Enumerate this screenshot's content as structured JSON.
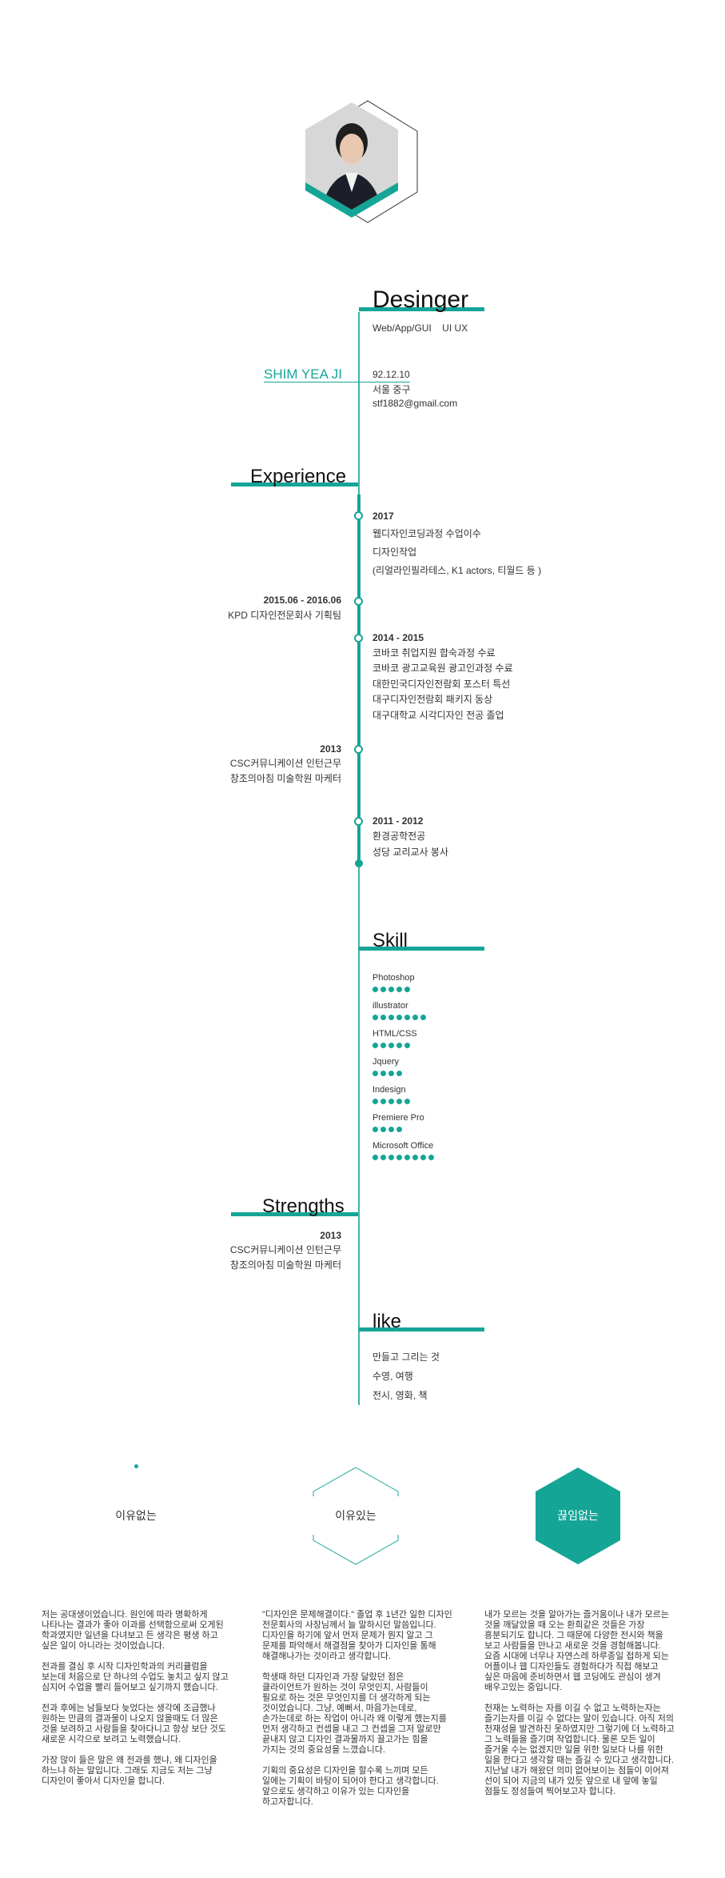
{
  "profile": {
    "title": "Desinger",
    "roles": "Web/App/GUI    UI UX",
    "name": "SHIM YEA JI",
    "birth": "92.12.10",
    "location": "서울 중구",
    "email": "stf1882@gmail.com"
  },
  "experience": {
    "title": "Experience",
    "right_entries": [
      {
        "year": "2017",
        "lines": [
          "웹디자인코딩과정 수업이수",
          "디자인작업",
          "(리얼라인필라테스, K1 actors, 티월드 등 )"
        ]
      },
      {
        "year": "2014 - 2015",
        "lines": [
          "코바코 취업지원 합숙과정 수료",
          "코바코 광고교육원 광고인과정 수료",
          "대한민국디자인전람회 포스터 특선",
          "대구디자인전람회 패키지 동상",
          "대구대학교 시각디자인 전공 졸업"
        ]
      },
      {
        "year": "2011 - 2012",
        "lines": [
          "환경공학전공",
          "성당 교리교사 봉사"
        ]
      }
    ],
    "left_entries": [
      {
        "year": "2015.06 - 2016.06",
        "lines": [
          "KPD 디자인전문회사 기획팀"
        ]
      },
      {
        "year": "2013",
        "lines": [
          "CSC커뮤니케이션 인턴근무",
          "창조의아침 미술학원 마케터"
        ]
      }
    ]
  },
  "skill": {
    "title": "Skill",
    "items": [
      {
        "label": "Photoshop",
        "level": 5
      },
      {
        "label": "illustrator",
        "level": 7
      },
      {
        "label": "HTML/CSS",
        "level": 5
      },
      {
        "label": "Jquery",
        "level": 4
      },
      {
        "label": "Indesign",
        "level": 5
      },
      {
        "label": "Premiere Pro",
        "level": 4
      },
      {
        "label": "Microsoft Office",
        "level": 8
      }
    ]
  },
  "strengths": {
    "title": "Strengths",
    "year": "2013",
    "lines": [
      "CSC커뮤니케이션 인턴근무",
      "창조의아침 미술학원 마케터"
    ]
  },
  "like": {
    "title": "like",
    "lines": [
      "만들고 그리는 것",
      "수영, 여행",
      "전시, 영화, 책"
    ]
  },
  "columns": {
    "c1_label": "이유없는",
    "c2_label": "이유있는",
    "c3_label": "끊임없는",
    "c1_text": "저는 공대생이었습니다. 원인에 따라 명확하게\n나타나는 결과가 좋아 이과를 선택함으로써 오게된\n학과였지만 일년을 다녀보고 든 생각은 평생 하고\n싶은 일이 아니라는 것이었습니다.\n\n전과를 결심 후 시작 디자인학과의 커리큘럼을\n보는데 처음으로 단 하나의 수업도 놓치고 싶지 않고\n심지어 수업을 빨리 들어보고 싶기까지 했습니다.\n\n전과 후에는 남들보다 늦었다는 생각에 조급했나\n원하는 만큼의 결과물이 나오지 않을때도 더 많은\n것을 보려하고 사람들을 찾아다니고 항상 보단 것도\n새로운 시각으로 보려고 노력했습니다.\n\n가장 많이 들은 말은 왜 전과를 했냐, 왜  디자인을\n하느냐 하는 말입니다. 그래도 지금도 저는 그냥\n디자인이 좋아서 디자인을 합니다.",
    "c2_text": "\"디자인은 문제해결이다.\" 졸업 후 1년간 일한 디자인\n전문회사의 사장님께서 늘 말하시던 말씀입니다.\n디자인을 하기에 앞서 먼저 문제가 뭔지 알고 그\n문제를 파악해서 해결점을 찾아가 디자인을 통해\n해결해나가는 것이라고 생각합니다.\n\n학생때 하던 디자인과 가장 달랐던 점은\n클라이언트가 원하는 것이 무엇인지, 사람들이\n필요로 하는 것은 무엇인지를 더 생각하게 되는\n것이었습니다. 그냥, 예뻐서, 마음가는데로,\n손가는데로 하는 작업이 아니라 왜 이렇게 했는지를\n먼저 생각하고 컨셉을 내고 그 컨셉을 그저 말로만\n끝내지 않고 디자인 결과물까지 끌고가는 힘을\n가지는 것의 중요성을 느꼈습니다.\n\n기획의 중요성은 디자인을 할수록 느끼며 모든\n일에는 기획이 바탕이 되어야 한다고 생각합니다.\n앞으로도 생각하고 이유가 있는 디자인을\n하고자합니다.",
    "c3_text": "내가 모르는 것을 알아가는 즐거움이나 내가 모르는\n것을 깨달았을 때 오는 환희같은 것들은 가장\n흥분되기도 합니다. 그 때문에 다양한 전시와 책을\n보고 사람들을 만나고 새로운 것을 경험해봅니다.\n요즘 시대에 너무나 자연스레 하루종일 접하게 되는\n어플이나 웹 디자인들도 경험하다가 직접 해보고\n싶은 마음에 준비하면서 웹 코딩에도 관심이 생겨\n배우고있는 중입니다.\n\n천재는 노력하는 자를 이길 수 없고 노력하는자는\n즐기는자를 이길 수 없다는 말이 있습니다. 아직 저의\n천재성을 발견하진 못하였지만 그렇기에 더 노력하고\n그 노력들을 즐기며 작업합니다. 물론  모든 일이\n즐거울 수는 없겠지만 일을 위한 일보다 나를 위한\n일을 한다고 생각할 때는 즐길 수 있다고 생각합니다.\n지난날 내가 해왔던 의미 없어보이는 점들이 이어져\n선이 되어 지금의 내가 있듯 앞으로 내 앞에 놓일\n점들도 정성들여 찍어보고자 합니다."
  },
  "colors": {
    "accent": "#15a597",
    "line": "#3fb3a6"
  }
}
